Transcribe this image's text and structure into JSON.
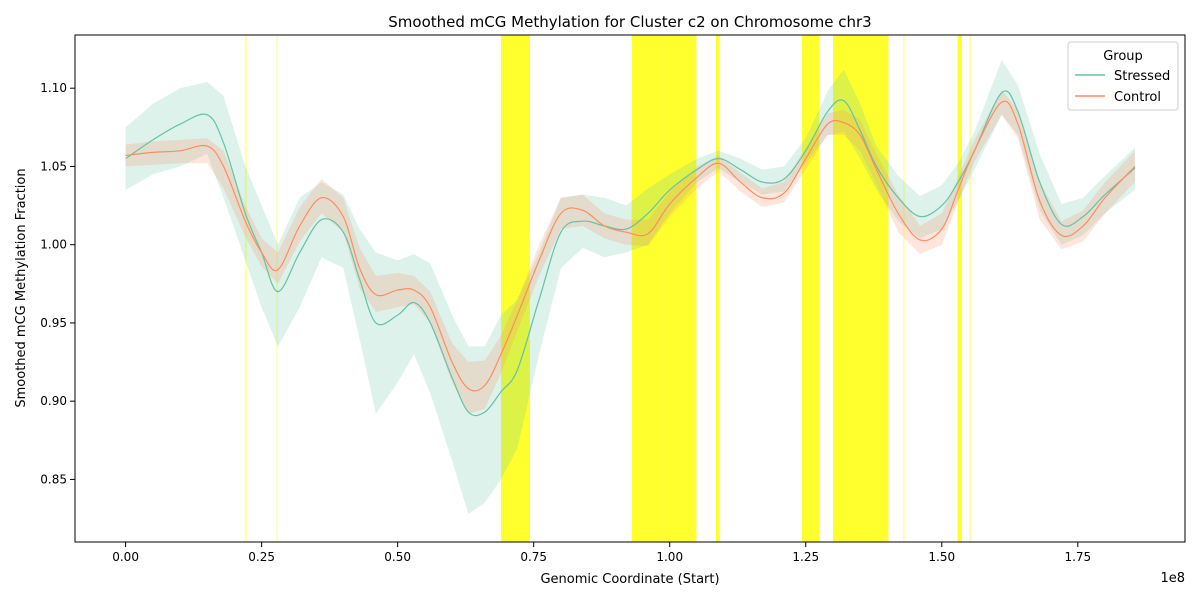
{
  "chart_data": {
    "type": "line",
    "title": "Smoothed mCG Methylation for Cluster c2 on Chromosome chr3",
    "xlabel": "Genomic Coordinate (Start)",
    "ylabel": "Smoothed mCG Methylation Fraction",
    "x_offset_label": "1e8",
    "xlim": [
      -0.093,
      1.947
    ],
    "ylim": [
      0.81,
      1.134
    ],
    "x_ticks": [
      0.0,
      0.25,
      0.5,
      0.75,
      1.0,
      1.25,
      1.5,
      1.75
    ],
    "x_tick_labels": [
      "0.00",
      "0.25",
      "0.50",
      "0.75",
      "1.00",
      "1.25",
      "1.50",
      "1.75"
    ],
    "y_ticks": [
      0.85,
      0.9,
      0.95,
      1.0,
      1.05,
      1.1
    ],
    "y_tick_labels": [
      "0.85",
      "0.90",
      "0.95",
      "1.00",
      "1.05",
      "1.10"
    ],
    "grid": false,
    "legend": {
      "title": "Group",
      "placement": "top-right"
    },
    "highlight_regions": [
      [
        0.219,
        0.223
      ],
      [
        0.277,
        0.28
      ],
      [
        0.69,
        0.743
      ],
      [
        0.93,
        0.986
      ],
      [
        0.986,
        1.049
      ],
      [
        1.085,
        1.092
      ],
      [
        1.243,
        1.275
      ],
      [
        1.3,
        1.402
      ],
      [
        1.429,
        1.432
      ],
      [
        1.529,
        1.537
      ],
      [
        1.55,
        1.555
      ]
    ],
    "highlight_color": "#ffff00",
    "series": [
      {
        "name": "Stressed",
        "color": "#66c2a5",
        "x": [
          0.0,
          0.05,
          0.1,
          0.15,
          0.18,
          0.22,
          0.25,
          0.28,
          0.32,
          0.36,
          0.4,
          0.43,
          0.46,
          0.5,
          0.53,
          0.56,
          0.6,
          0.63,
          0.66,
          0.69,
          0.72,
          0.76,
          0.8,
          0.84,
          0.88,
          0.92,
          0.96,
          1.0,
          1.05,
          1.09,
          1.13,
          1.17,
          1.21,
          1.25,
          1.29,
          1.32,
          1.35,
          1.38,
          1.42,
          1.46,
          1.5,
          1.53,
          1.56,
          1.61,
          1.64,
          1.68,
          1.72,
          1.76,
          1.8,
          1.855
        ],
        "y": [
          1.055,
          1.067,
          1.077,
          1.083,
          1.065,
          1.02,
          0.995,
          0.97,
          0.995,
          1.016,
          1.008,
          0.978,
          0.95,
          0.955,
          0.963,
          0.95,
          0.915,
          0.893,
          0.893,
          0.906,
          0.92,
          0.965,
          1.008,
          1.015,
          1.012,
          1.01,
          1.02,
          1.035,
          1.048,
          1.055,
          1.048,
          1.04,
          1.042,
          1.06,
          1.085,
          1.092,
          1.073,
          1.05,
          1.03,
          1.018,
          1.025,
          1.04,
          1.06,
          1.097,
          1.085,
          1.04,
          1.013,
          1.018,
          1.032,
          1.049
        ],
        "lower": [
          1.035,
          1.045,
          1.05,
          1.058,
          1.03,
          0.99,
          0.96,
          0.935,
          0.96,
          0.992,
          0.985,
          0.94,
          0.892,
          0.912,
          0.93,
          0.905,
          0.862,
          0.828,
          0.835,
          0.85,
          0.87,
          0.93,
          0.985,
          0.998,
          0.992,
          0.995,
          1.0,
          1.02,
          1.04,
          1.049,
          1.04,
          1.032,
          1.034,
          1.052,
          1.07,
          1.072,
          1.055,
          1.035,
          1.015,
          1.004,
          1.01,
          1.028,
          1.048,
          1.083,
          1.07,
          1.022,
          1.0,
          1.006,
          1.02,
          1.035
        ],
        "upper": [
          1.075,
          1.09,
          1.1,
          1.104,
          1.095,
          1.05,
          1.025,
          1.0,
          1.03,
          1.04,
          1.032,
          1.01,
          0.995,
          0.99,
          0.994,
          0.988,
          0.955,
          0.935,
          0.935,
          0.955,
          0.965,
          0.995,
          1.03,
          1.032,
          1.03,
          1.025,
          1.036,
          1.045,
          1.055,
          1.06,
          1.055,
          1.048,
          1.05,
          1.068,
          1.098,
          1.112,
          1.09,
          1.063,
          1.044,
          1.031,
          1.038,
          1.052,
          1.072,
          1.118,
          1.102,
          1.058,
          1.026,
          1.03,
          1.044,
          1.062
        ]
      },
      {
        "name": "Control",
        "color": "#fc8d62",
        "x": [
          0.0,
          0.05,
          0.1,
          0.15,
          0.18,
          0.22,
          0.25,
          0.28,
          0.32,
          0.36,
          0.4,
          0.43,
          0.46,
          0.5,
          0.53,
          0.56,
          0.6,
          0.63,
          0.66,
          0.69,
          0.72,
          0.76,
          0.8,
          0.84,
          0.88,
          0.92,
          0.96,
          1.0,
          1.05,
          1.09,
          1.13,
          1.17,
          1.21,
          1.25,
          1.29,
          1.32,
          1.35,
          1.38,
          1.42,
          1.46,
          1.5,
          1.53,
          1.56,
          1.61,
          1.64,
          1.68,
          1.72,
          1.76,
          1.8,
          1.855
        ],
        "y": [
          1.057,
          1.059,
          1.06,
          1.063,
          1.05,
          1.015,
          0.995,
          0.984,
          1.012,
          1.03,
          1.018,
          0.985,
          0.968,
          0.971,
          0.971,
          0.96,
          0.925,
          0.908,
          0.91,
          0.93,
          0.955,
          0.99,
          1.02,
          1.022,
          1.012,
          1.008,
          1.007,
          1.026,
          1.043,
          1.052,
          1.04,
          1.03,
          1.033,
          1.055,
          1.077,
          1.078,
          1.07,
          1.048,
          1.02,
          1.003,
          1.01,
          1.035,
          1.06,
          1.091,
          1.077,
          1.028,
          1.006,
          1.012,
          1.03,
          1.05
        ],
        "lower": [
          1.05,
          1.051,
          1.052,
          1.052,
          1.036,
          1.005,
          0.986,
          0.975,
          1.002,
          1.02,
          1.008,
          0.972,
          0.957,
          0.96,
          0.962,
          0.95,
          0.912,
          0.892,
          0.895,
          0.918,
          0.945,
          0.98,
          1.01,
          1.012,
          1.004,
          1.0,
          0.999,
          1.018,
          1.036,
          1.047,
          1.034,
          1.024,
          1.027,
          1.048,
          1.07,
          1.07,
          1.06,
          1.038,
          1.008,
          0.994,
          1.0,
          1.027,
          1.053,
          1.083,
          1.068,
          1.016,
          0.997,
          1.002,
          1.02,
          1.04
        ],
        "upper": [
          1.064,
          1.066,
          1.067,
          1.068,
          1.06,
          1.025,
          1.004,
          0.995,
          1.024,
          1.042,
          1.03,
          0.998,
          0.98,
          0.982,
          0.98,
          0.97,
          0.937,
          0.925,
          0.926,
          0.942,
          0.965,
          1.0,
          1.03,
          1.032,
          1.02,
          1.016,
          1.016,
          1.034,
          1.05,
          1.057,
          1.046,
          1.036,
          1.04,
          1.062,
          1.084,
          1.086,
          1.08,
          1.058,
          1.032,
          1.012,
          1.02,
          1.043,
          1.067,
          1.099,
          1.086,
          1.04,
          1.015,
          1.022,
          1.04,
          1.06
        ]
      }
    ]
  }
}
